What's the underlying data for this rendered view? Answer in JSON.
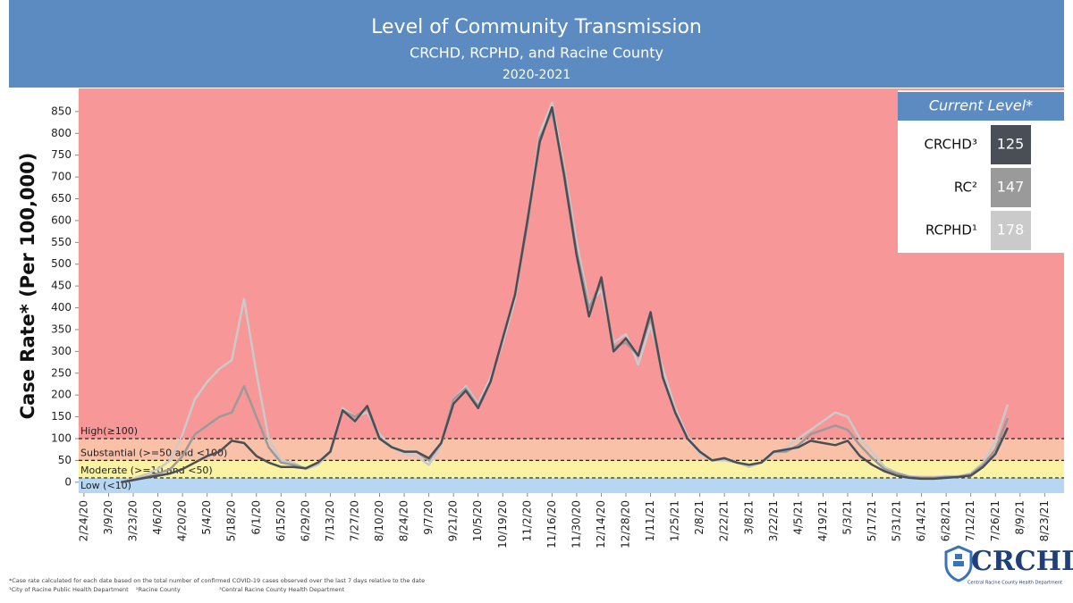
{
  "chart_data": {
    "type": "line",
    "title": "Level of Community Transmission",
    "subtitle": "CRCHD, RCPHD, and Racine County",
    "period": "2020-2021",
    "y_label": "Case Rate* (Per 100,000)",
    "x": [
      "2020-03-16",
      "2020-03-23",
      "2020-03-30",
      "2020-04-06",
      "2020-04-13",
      "2020-04-20",
      "2020-04-27",
      "2020-05-04",
      "2020-05-11",
      "2020-05-18",
      "2020-05-25",
      "2020-06-01",
      "2020-06-08",
      "2020-06-15",
      "2020-06-22",
      "2020-06-29",
      "2020-07-06",
      "2020-07-13",
      "2020-07-20",
      "2020-07-27",
      "2020-08-03",
      "2020-08-10",
      "2020-08-17",
      "2020-08-24",
      "2020-08-31",
      "2020-09-07",
      "2020-09-14",
      "2020-09-21",
      "2020-09-28",
      "2020-10-05",
      "2020-10-12",
      "2020-10-19",
      "2020-10-26",
      "2020-11-02",
      "2020-11-09",
      "2020-11-16",
      "2020-11-23",
      "2020-11-30",
      "2020-12-07",
      "2020-12-14",
      "2020-12-21",
      "2020-12-28",
      "2021-01-04",
      "2021-01-11",
      "2021-01-18",
      "2021-01-25",
      "2021-02-01",
      "2021-02-08",
      "2021-02-15",
      "2021-02-22",
      "2021-03-01",
      "2021-03-08",
      "2021-03-15",
      "2021-03-22",
      "2021-03-29",
      "2021-04-05",
      "2021-04-12",
      "2021-04-19",
      "2021-04-26",
      "2021-05-03",
      "2021-05-10",
      "2021-05-17",
      "2021-05-24",
      "2021-05-31",
      "2021-06-07",
      "2021-06-14",
      "2021-06-21",
      "2021-06-28",
      "2021-07-05",
      "2021-07-12",
      "2021-07-19",
      "2021-07-26",
      "2021-08-02"
    ],
    "series": [
      {
        "name": "CRCHD³",
        "color": "#4a4f57",
        "values": [
          0,
          5,
          10,
          15,
          20,
          30,
          45,
          60,
          70,
          95,
          90,
          60,
          45,
          35,
          35,
          32,
          45,
          70,
          165,
          140,
          175,
          100,
          80,
          70,
          70,
          55,
          90,
          180,
          210,
          170,
          230,
          330,
          430,
          600,
          780,
          860,
          700,
          520,
          380,
          470,
          300,
          330,
          290,
          390,
          240,
          160,
          100,
          70,
          50,
          55,
          45,
          40,
          45,
          70,
          75,
          80,
          95,
          90,
          85,
          95,
          60,
          40,
          25,
          15,
          10,
          8,
          8,
          10,
          12,
          15,
          35,
          65,
          125
        ]
      },
      {
        "name": "RC²",
        "color": "#9a9a9a",
        "values": [
          0,
          5,
          12,
          20,
          30,
          60,
          110,
          130,
          150,
          160,
          220,
          150,
          80,
          45,
          40,
          32,
          45,
          70,
          165,
          150,
          170,
          100,
          80,
          70,
          70,
          50,
          90,
          190,
          215,
          175,
          230,
          330,
          430,
          590,
          790,
          850,
          710,
          530,
          400,
          460,
          310,
          320,
          290,
          380,
          240,
          160,
          100,
          70,
          50,
          55,
          45,
          40,
          45,
          70,
          70,
          85,
          110,
          120,
          130,
          120,
          85,
          55,
          30,
          20,
          12,
          10,
          10,
          12,
          12,
          18,
          40,
          75,
          147
        ]
      },
      {
        "name": "RCPHD¹",
        "color": "#cacaca",
        "values": [
          0,
          8,
          18,
          30,
          50,
          110,
          190,
          230,
          260,
          280,
          420,
          250,
          100,
          50,
          45,
          30,
          40,
          70,
          170,
          150,
          160,
          110,
          80,
          65,
          60,
          40,
          85,
          190,
          220,
          180,
          240,
          320,
          420,
          600,
          800,
          870,
          720,
          550,
          410,
          440,
          320,
          340,
          270,
          360,
          260,
          170,
          105,
          65,
          50,
          50,
          45,
          35,
          45,
          65,
          80,
          100,
          120,
          140,
          160,
          150,
          100,
          70,
          35,
          22,
          14,
          12,
          12,
          14,
          14,
          20,
          45,
          95,
          178
        ]
      }
    ],
    "current_level_title": "Current Level*",
    "bands": [
      {
        "label": "Low (<10)",
        "to": 10,
        "color": "#b7d6f2"
      },
      {
        "label": "Moderate (>=10 and <50)",
        "from": 10,
        "to": 50,
        "color": "#fbf3a3"
      },
      {
        "label": "Substantial (>=50 and <100)",
        "from": 50,
        "to": 100,
        "color": "#f8c1a8"
      },
      {
        "label": "High(≥100)",
        "from": 100,
        "color": "#f89797"
      }
    ],
    "xlim": [
      "2020-02-21",
      "2021-09-03"
    ],
    "xticks": [
      {
        "value": "2020-02-24",
        "label": "2/24/20"
      },
      {
        "value": "2020-03-09",
        "label": "3/9/20"
      },
      {
        "value": "2020-03-23",
        "label": "3/23/20"
      },
      {
        "value": "2020-04-06",
        "label": "4/6/20"
      },
      {
        "value": "2020-04-20",
        "label": "4/20/20"
      },
      {
        "value": "2020-05-04",
        "label": "5/4/20"
      },
      {
        "value": "2020-05-18",
        "label": "5/18/20"
      },
      {
        "value": "2020-06-01",
        "label": "6/1/20"
      },
      {
        "value": "2020-06-15",
        "label": "6/15/20"
      },
      {
        "value": "2020-06-29",
        "label": "6/29/20"
      },
      {
        "value": "2020-07-13",
        "label": "7/13/20"
      },
      {
        "value": "2020-07-27",
        "label": "7/27/20"
      },
      {
        "value": "2020-08-10",
        "label": "8/10/20"
      },
      {
        "value": "2020-08-24",
        "label": "8/24/20"
      },
      {
        "value": "2020-09-07",
        "label": "9/7/20"
      },
      {
        "value": "2020-09-21",
        "label": "9/21/20"
      },
      {
        "value": "2020-10-05",
        "label": "10/5/20"
      },
      {
        "value": "2020-10-19",
        "label": "10/19/20"
      },
      {
        "value": "2020-11-02",
        "label": "11/2/20"
      },
      {
        "value": "2020-11-16",
        "label": "11/16/20"
      },
      {
        "value": "2020-11-30",
        "label": "11/30/20"
      },
      {
        "value": "2020-12-14",
        "label": "12/14/20"
      },
      {
        "value": "2020-12-28",
        "label": "12/28/20"
      },
      {
        "value": "2021-01-11",
        "label": "1/11/21"
      },
      {
        "value": "2021-01-25",
        "label": "1/25/21"
      },
      {
        "value": "2021-02-08",
        "label": "2/8/21"
      },
      {
        "value": "2021-02-22",
        "label": "2/22/21"
      },
      {
        "value": "2021-03-08",
        "label": "3/8/21"
      },
      {
        "value": "2021-03-22",
        "label": "3/22/21"
      },
      {
        "value": "2021-04-05",
        "label": "4/5/21"
      },
      {
        "value": "2021-04-19",
        "label": "4/19/21"
      },
      {
        "value": "2021-05-03",
        "label": "5/3/21"
      },
      {
        "value": "2021-05-17",
        "label": "5/17/21"
      },
      {
        "value": "2021-05-31",
        "label": "5/31/21"
      },
      {
        "value": "2021-06-14",
        "label": "6/14/21"
      },
      {
        "value": "2021-06-28",
        "label": "6/28/21"
      },
      {
        "value": "2021-07-12",
        "label": "7/12/21"
      },
      {
        "value": "2021-07-26",
        "label": "7/26/21"
      },
      {
        "value": "2021-08-09",
        "label": "8/9/21"
      },
      {
        "value": "2021-08-23",
        "label": "8/23/21"
      }
    ],
    "ylim": [
      -25,
      903
    ],
    "yticks": [
      0,
      50,
      100,
      150,
      200,
      250,
      300,
      350,
      400,
      450,
      500,
      550,
      600,
      650,
      700,
      750,
      800,
      850
    ],
    "grid": false,
    "footnotes": [
      "*Case rate calculated for each date based on the total number of confirmed COVID-19 cases observed over the last 7 days relative to the date",
      "¹City of Racine Public Health Department",
      "²Racine County",
      "³Central Racine County Health Department"
    ],
    "logo": {
      "text": "CRCHD",
      "subtitle": "Central Racine County Health Department"
    }
  }
}
